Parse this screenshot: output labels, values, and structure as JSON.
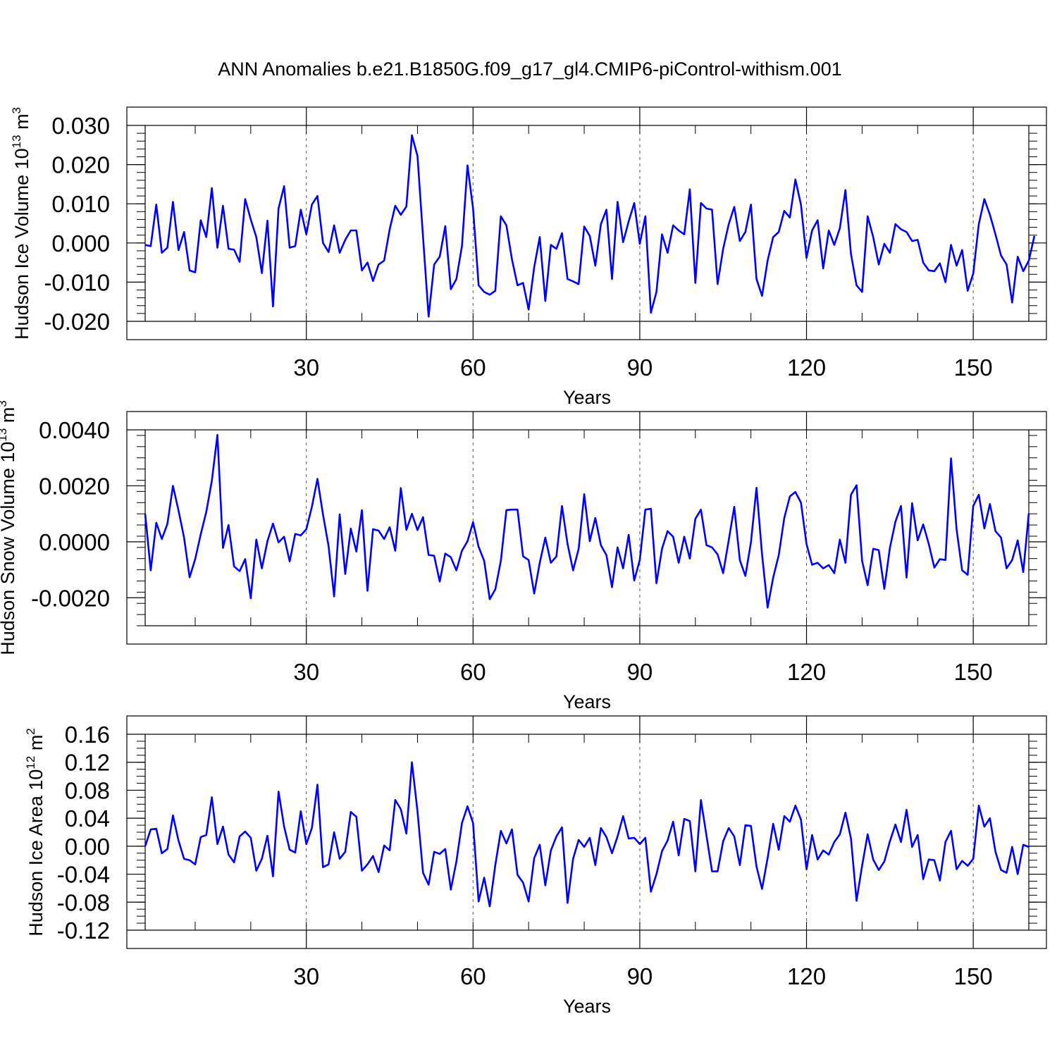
{
  "title": "ANN Anomalies b.e21.B1850G.f09_g17_gl4.CMIP6-piControl-withism.001",
  "colors": {
    "line": "#0000ff",
    "axis": "#000000",
    "gridline": "#555555"
  },
  "chart_data": [
    {
      "type": "line",
      "name": "ice-volume",
      "ylabel": {
        "prefix": "Hudson Ice Volume 10",
        "exp1": "13",
        "mid": " m",
        "exp2": "3"
      },
      "xlabel": "Years",
      "xlim": [
        1,
        160
      ],
      "ylim": [
        -0.02,
        0.03
      ],
      "yticks": [
        -0.02,
        -0.01,
        0.0,
        0.01,
        0.02,
        0.03
      ],
      "ytick_labels": [
        "-0.020",
        "-0.010",
        "0.000",
        "0.010",
        "0.020",
        "0.030"
      ],
      "yminor_step": 0.002,
      "xticks": [
        30,
        60,
        90,
        120,
        150
      ],
      "xtick_labels": [
        "30",
        "60",
        "90",
        "120",
        "150"
      ],
      "xminor_step": 10,
      "vgrid": [
        30,
        60,
        90,
        120,
        150
      ],
      "values": [
        -0.0005,
        -0.0008,
        0.0098,
        -0.0025,
        -0.0012,
        0.0105,
        -0.0018,
        0.0028,
        -0.007,
        -0.0075,
        0.0058,
        0.0015,
        0.014,
        -0.0012,
        0.0095,
        -0.0015,
        -0.0017,
        -0.0048,
        0.0112,
        0.006,
        0.0015,
        -0.0077,
        0.0057,
        -0.0162,
        0.0088,
        0.0145,
        -0.0012,
        -0.0008,
        0.0085,
        0.0022,
        0.0098,
        0.012,
        0.0,
        -0.0023,
        0.0045,
        -0.0025,
        0.0008,
        0.0032,
        0.0032,
        -0.007,
        -0.005,
        -0.0097,
        -0.0055,
        -0.0045,
        0.0035,
        0.0095,
        0.0072,
        0.0093,
        0.0275,
        0.0222,
        0.0015,
        -0.0188,
        -0.0055,
        -0.0035,
        0.0043,
        -0.0118,
        -0.0092,
        -0.0008,
        0.0198,
        0.0088,
        -0.0108,
        -0.0125,
        -0.0132,
        -0.0122,
        0.0068,
        0.0045,
        -0.0042,
        -0.0108,
        -0.0102,
        -0.017,
        -0.0062,
        0.0015,
        -0.0148,
        -0.0005,
        -0.0015,
        0.0025,
        -0.0092,
        -0.0098,
        -0.0105,
        0.0042,
        0.0018,
        -0.0058,
        0.0048,
        0.0085,
        -0.0092,
        0.0105,
        0.0002,
        0.0055,
        0.0102,
        -0.0002,
        0.0068,
        -0.0178,
        -0.0125,
        0.0022,
        -0.0025,
        0.0045,
        0.0032,
        0.0022,
        0.0137,
        -0.0102,
        0.0102,
        0.0088,
        0.0085,
        -0.0105,
        -0.0015,
        0.0048,
        0.0092,
        0.0005,
        0.0028,
        0.0098,
        -0.0092,
        -0.0135,
        -0.0045,
        0.0015,
        0.0028,
        0.0082,
        0.0065,
        0.0162,
        0.0098,
        -0.0038,
        0.0032,
        0.0058,
        -0.0065,
        0.0032,
        -0.0005,
        0.0038,
        0.0135,
        -0.0028,
        -0.0108,
        -0.0125,
        0.0068,
        0.0015,
        -0.0055,
        -0.0002,
        -0.0025,
        0.0048,
        0.0035,
        0.0028,
        0.0005,
        0.0008,
        -0.005,
        -0.007,
        -0.0072,
        -0.0052,
        -0.01,
        -0.0005,
        -0.0058,
        -0.0018,
        -0.0122,
        -0.0078,
        0.0048,
        0.0112,
        0.0072,
        0.0022,
        -0.0032,
        -0.0055,
        -0.0152,
        -0.0035,
        -0.0072,
        -0.0045,
        0.0018
      ]
    },
    {
      "type": "line",
      "name": "snow-volume",
      "ylabel": {
        "prefix": "Hudson Snow Volume 10",
        "exp1": "13",
        "mid": " m",
        "exp2": "3"
      },
      "xlabel": "Years",
      "xlim": [
        1,
        160
      ],
      "ylim": [
        -0.003,
        0.004
      ],
      "yticks": [
        -0.002,
        0.0,
        0.002,
        0.004
      ],
      "ytick_labels": [
        "-0.0020",
        "0.0000",
        "0.0020",
        "0.0040"
      ],
      "yminor_step": 0.0004,
      "xticks": [
        30,
        60,
        90,
        120,
        150
      ],
      "xtick_labels": [
        "30",
        "60",
        "90",
        "120",
        "150"
      ],
      "xminor_step": 10,
      "vgrid": [
        30,
        60,
        90,
        120,
        150
      ],
      "values": [
        0.001,
        -0.00102,
        0.00068,
        0.0001,
        0.00064,
        0.002,
        0.00112,
        0.00015,
        -0.00127,
        -0.00062,
        0.00027,
        0.00107,
        0.00218,
        0.00382,
        -0.00022,
        0.0006,
        -0.00088,
        -0.00105,
        -0.00062,
        -0.00202,
        8e-05,
        -0.00095,
        2e-05,
        0.00065,
        -2e-05,
        0.00018,
        -0.0007,
        0.00028,
        0.00023,
        0.00045,
        0.00125,
        0.00225,
        0.00097,
        -0.00015,
        -0.00195,
        0.00098,
        -0.00115,
        0.00047,
        -0.00035,
        0.00113,
        -0.00175,
        0.00045,
        0.0004,
        0.0001,
        0.00052,
        -0.00032,
        0.00192,
        0.00043,
        0.001,
        0.00042,
        0.00088,
        -0.00047,
        -0.0005,
        -0.00142,
        -0.00042,
        -0.00055,
        -0.00102,
        -0.00032,
        2e-05,
        0.0007,
        -0.00018,
        -0.00068,
        -0.00205,
        -0.0017,
        -0.00068,
        0.00113,
        0.00115,
        0.00115,
        -0.00052,
        -0.00065,
        -0.00185,
        -0.00075,
        0.00015,
        -0.00075,
        -0.00052,
        0.00128,
        -8e-05,
        -0.00102,
        -0.00025,
        0.0017,
        2e-05,
        0.00085,
        -0.00012,
        -0.00048,
        -0.00162,
        -0.0002,
        -0.00095,
        0.00025,
        -0.00138,
        -0.00065,
        0.00115,
        0.00118,
        -0.00148,
        -0.00025,
        0.00038,
        0.00018,
        -0.00075,
        0.00018,
        -0.0006,
        0.00082,
        0.00115,
        -0.00012,
        -0.0002,
        -0.00045,
        -0.00112,
        5e-05,
        0.00125,
        -0.00065,
        -0.00122,
        -2e-05,
        0.00193,
        -0.00045,
        -0.00235,
        -0.00128,
        -0.00048,
        0.00085,
        0.00162,
        0.00178,
        0.0014,
        -8e-05,
        -0.00082,
        -0.00075,
        -0.00095,
        -0.00083,
        -0.00112,
        8e-05,
        -0.00075,
        0.00168,
        0.00202,
        -0.00068,
        -0.00155,
        -0.00025,
        -0.0003,
        -0.00168,
        -0.00022,
        0.00072,
        0.00128,
        -0.00128,
        0.00138,
        5e-05,
        0.00062,
        -8e-05,
        -0.00092,
        -0.00062,
        -0.00065,
        0.00298,
        0.00045,
        -0.00102,
        -0.00118,
        0.00128,
        0.00168,
        0.00048,
        0.00135,
        0.00038,
        0.00015,
        -0.00095,
        -0.00065,
        5e-05,
        -0.00108,
        0.00102
      ]
    },
    {
      "type": "line",
      "name": "ice-area",
      "ylabel": {
        "prefix": "Hudson Ice Area 10",
        "exp1": "12",
        "mid": " m",
        "exp2": "2"
      },
      "xlabel": "Years",
      "xlim": [
        1,
        160
      ],
      "ylim": [
        -0.12,
        0.16
      ],
      "yticks": [
        -0.12,
        -0.08,
        -0.04,
        0.0,
        0.04,
        0.08,
        0.12,
        0.16
      ],
      "ytick_labels": [
        "-0.12",
        "-0.08",
        "-0.04",
        "0.00",
        "0.04",
        "0.08",
        "0.12",
        "0.16"
      ],
      "yminor_step": 0.01,
      "xticks": [
        30,
        60,
        90,
        120,
        150
      ],
      "xtick_labels": [
        "30",
        "60",
        "90",
        "120",
        "150"
      ],
      "xminor_step": 10,
      "vgrid": [
        30,
        60,
        90,
        120,
        150
      ],
      "values": [
        0.0,
        0.024,
        0.025,
        -0.01,
        -0.004,
        0.044,
        0.008,
        -0.018,
        -0.02,
        -0.026,
        0.013,
        0.016,
        0.07,
        0.003,
        0.028,
        -0.012,
        -0.023,
        0.014,
        0.021,
        0.012,
        -0.035,
        -0.018,
        0.015,
        -0.043,
        0.078,
        0.028,
        -0.005,
        -0.009,
        0.05,
        0.003,
        0.026,
        0.088,
        -0.03,
        -0.026,
        0.02,
        -0.018,
        -0.008,
        0.049,
        0.042,
        -0.035,
        -0.026,
        -0.014,
        -0.037,
        0.001,
        -0.006,
        0.066,
        0.053,
        0.018,
        0.12,
        0.05,
        -0.038,
        -0.055,
        -0.008,
        -0.011,
        -0.004,
        -0.062,
        -0.022,
        0.033,
        0.057,
        0.033,
        -0.079,
        -0.045,
        -0.086,
        -0.027,
        0.022,
        0.004,
        0.024,
        -0.041,
        -0.052,
        -0.079,
        -0.017,
        0.002,
        -0.056,
        -0.006,
        0.014,
        0.027,
        -0.081,
        -0.018,
        0.009,
        -0.001,
        0.012,
        -0.027,
        0.026,
        0.013,
        -0.01,
        0.014,
        0.043,
        0.011,
        0.012,
        0.003,
        0.012,
        -0.065,
        -0.04,
        -0.007,
        0.008,
        0.035,
        -0.013,
        0.039,
        0.036,
        -0.036,
        0.066,
        0.015,
        -0.036,
        -0.036,
        0.007,
        0.026,
        0.014,
        -0.027,
        0.03,
        0.029,
        -0.029,
        -0.061,
        -0.017,
        0.032,
        -0.005,
        0.043,
        0.035,
        0.058,
        0.038,
        -0.033,
        0.016,
        -0.019,
        -0.006,
        -0.012,
        0.006,
        0.017,
        0.048,
        0.011,
        -0.078,
        -0.028,
        0.017,
        -0.019,
        -0.034,
        -0.022,
        0.007,
        0.031,
        0.006,
        0.052,
        -0.001,
        0.016,
        -0.047,
        -0.019,
        -0.02,
        -0.049,
        0.006,
        0.022,
        -0.033,
        -0.021,
        -0.028,
        -0.018,
        0.058,
        0.028,
        0.04,
        -0.008,
        -0.034,
        -0.038,
        -0.001,
        -0.04,
        0.002,
        -0.001
      ]
    }
  ]
}
